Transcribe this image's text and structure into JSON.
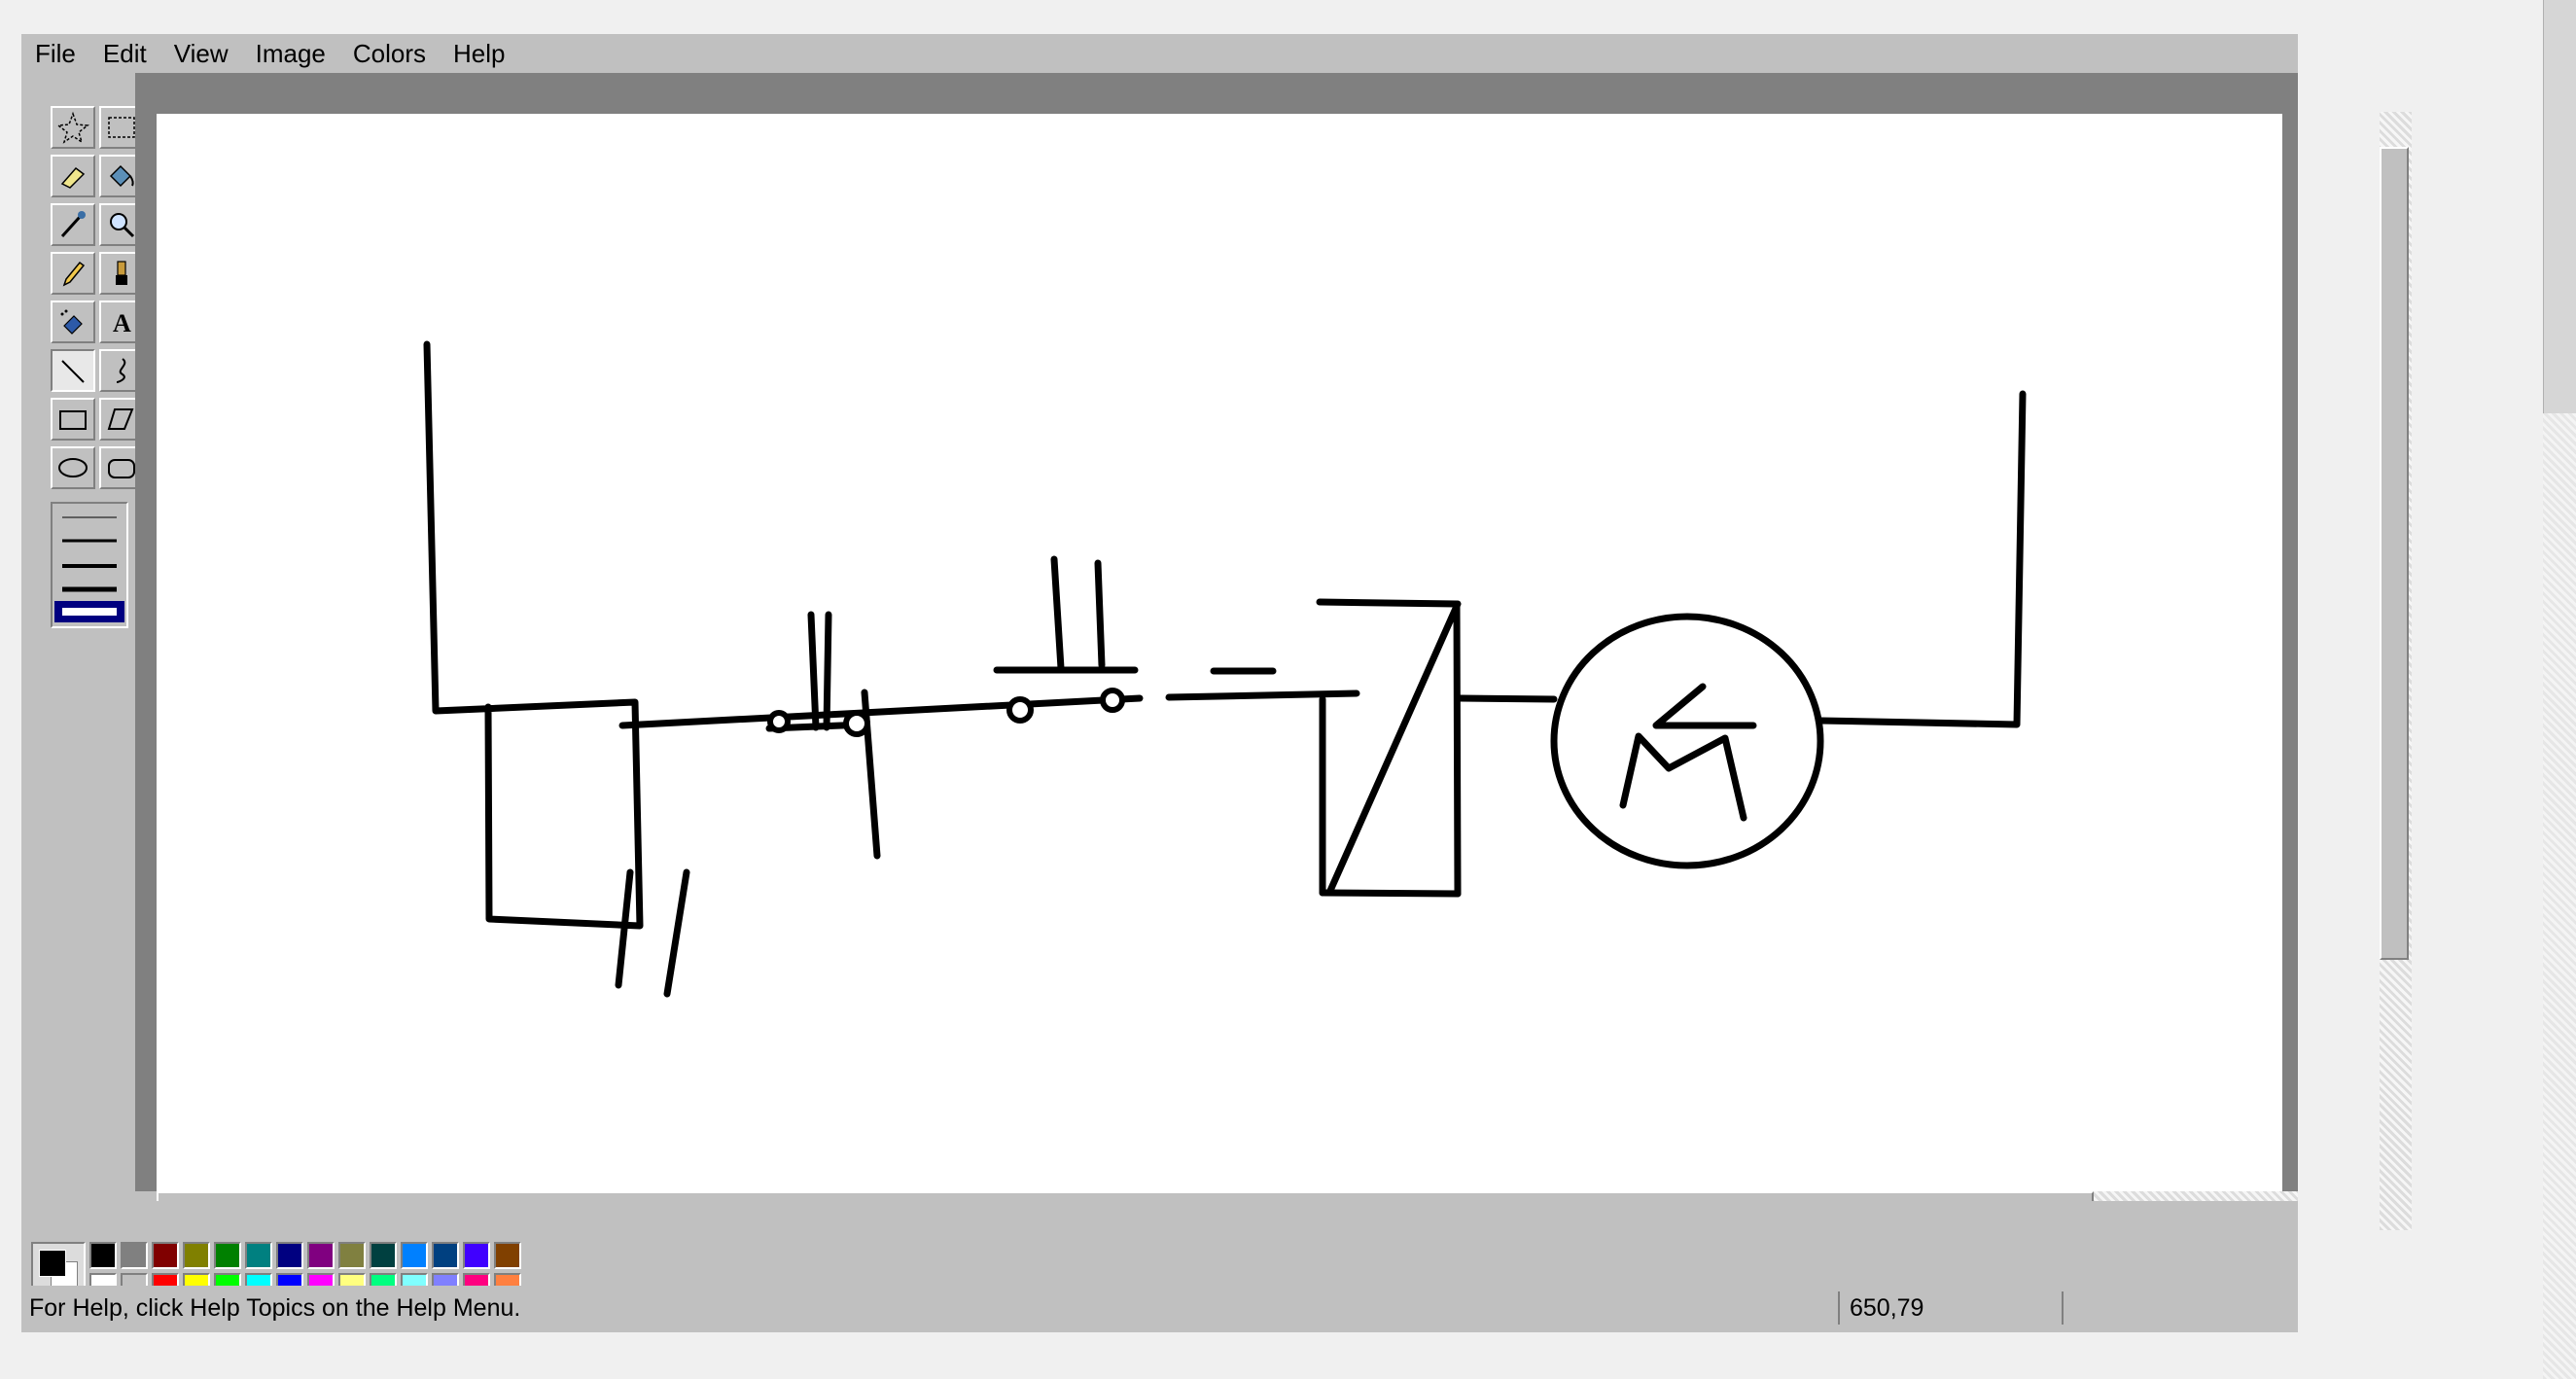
{
  "menu": {
    "file": "File",
    "edit": "Edit",
    "view": "View",
    "image": "Image",
    "colors": "Colors",
    "help": "Help"
  },
  "tools": [
    {
      "name": "free-select-tool",
      "icon": "star-select-icon",
      "active": false
    },
    {
      "name": "select-tool",
      "icon": "rect-select-icon",
      "active": false
    },
    {
      "name": "eraser-tool",
      "icon": "eraser-icon",
      "active": false
    },
    {
      "name": "fill-tool",
      "icon": "paint-bucket-icon",
      "active": false
    },
    {
      "name": "pick-color-tool",
      "icon": "eyedropper-icon",
      "active": false
    },
    {
      "name": "magnifier-tool",
      "icon": "magnifier-icon",
      "active": false
    },
    {
      "name": "pencil-tool",
      "icon": "pencil-icon",
      "active": false
    },
    {
      "name": "brush-tool",
      "icon": "brush-icon",
      "active": false
    },
    {
      "name": "airbrush-tool",
      "icon": "airbrush-icon",
      "active": false
    },
    {
      "name": "text-tool",
      "icon": "text-icon",
      "active": false
    },
    {
      "name": "line-tool",
      "icon": "line-icon",
      "active": true
    },
    {
      "name": "curve-tool",
      "icon": "curve-icon",
      "active": false
    },
    {
      "name": "rectangle-tool",
      "icon": "rectangle-icon",
      "active": false
    },
    {
      "name": "polygon-tool",
      "icon": "polygon-icon",
      "active": false
    },
    {
      "name": "ellipse-tool",
      "icon": "ellipse-icon",
      "active": false
    },
    {
      "name": "rounded-rectangle-tool",
      "icon": "rounded-rectangle-icon",
      "active": false
    }
  ],
  "line_width_selected": 5,
  "colors": {
    "foreground": "#000000",
    "background": "#ffffff",
    "palette_top": [
      "#000000",
      "#808080",
      "#800000",
      "#808000",
      "#008000",
      "#008080",
      "#000080",
      "#800080",
      "#808040",
      "#004040",
      "#0080ff",
      "#004080",
      "#4000ff",
      "#804000"
    ],
    "palette_bottom": [
      "#ffffff",
      "#c0c0c0",
      "#ff0000",
      "#ffff00",
      "#00ff00",
      "#00ffff",
      "#0000ff",
      "#ff00ff",
      "#ffff80",
      "#00ff80",
      "#80ffff",
      "#8080ff",
      "#ff0080",
      "#ff8040"
    ]
  },
  "status": {
    "help_text": "For Help, click Help Topics on the Help Menu.",
    "coords": "650,79"
  }
}
